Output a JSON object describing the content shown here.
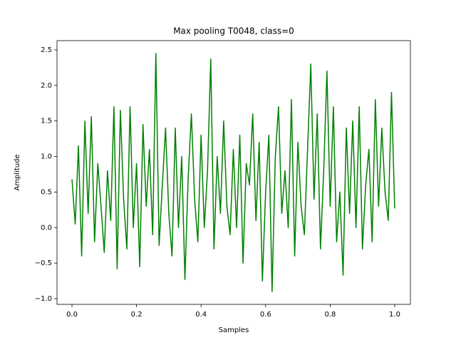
{
  "chart_data": {
    "type": "line",
    "title": "Max pooling T0048, class=0",
    "xlabel": "Samples",
    "ylabel": "Amplitude",
    "color": "#008000",
    "x": [
      0,
      0.01,
      0.02,
      0.03,
      0.04,
      0.05,
      0.06,
      0.07,
      0.08,
      0.09,
      0.1,
      0.11,
      0.12,
      0.13,
      0.14,
      0.15,
      0.16,
      0.17,
      0.18,
      0.19,
      0.2,
      0.21,
      0.22,
      0.23,
      0.24,
      0.25,
      0.26,
      0.27,
      0.28,
      0.29,
      0.3,
      0.31,
      0.32,
      0.33,
      0.34,
      0.35,
      0.36,
      0.37,
      0.38,
      0.39,
      0.4,
      0.41,
      0.42,
      0.43,
      0.44,
      0.45,
      0.46,
      0.47,
      0.48,
      0.49,
      0.5,
      0.51,
      0.52,
      0.53,
      0.54,
      0.55,
      0.56,
      0.57,
      0.58,
      0.59,
      0.6,
      0.61,
      0.62,
      0.63,
      0.64,
      0.65,
      0.66,
      0.67,
      0.68,
      0.69,
      0.7,
      0.71,
      0.72,
      0.73,
      0.74,
      0.75,
      0.76,
      0.77,
      0.78,
      0.79,
      0.8,
      0.81,
      0.82,
      0.83,
      0.84,
      0.85,
      0.86,
      0.87,
      0.88,
      0.89,
      0.9,
      0.91,
      0.92,
      0.93,
      0.94,
      0.95,
      0.96,
      0.97,
      0.98,
      0.99,
      1
    ],
    "values": [
      0.68,
      0.05,
      1.15,
      -0.4,
      1.5,
      0.2,
      1.56,
      -0.2,
      0.9,
      0.3,
      -0.35,
      0.8,
      0.1,
      1.7,
      -0.58,
      1.65,
      0.4,
      -0.3,
      1.7,
      0.0,
      0.9,
      -0.55,
      1.45,
      0.3,
      1.1,
      -0.1,
      2.45,
      -0.25,
      0.6,
      1.4,
      0.2,
      -0.4,
      1.4,
      0.0,
      1.0,
      -0.73,
      0.7,
      1.6,
      0.4,
      -0.2,
      1.3,
      0.0,
      0.8,
      2.37,
      -0.3,
      1.0,
      0.2,
      1.5,
      0.3,
      -0.1,
      1.1,
      0.0,
      1.3,
      -0.5,
      0.9,
      0.6,
      1.6,
      0.1,
      1.2,
      -0.75,
      0.5,
      1.3,
      -0.9,
      1.0,
      1.7,
      0.2,
      0.8,
      0.0,
      1.8,
      -0.4,
      1.2,
      0.3,
      -0.1,
      1.1,
      2.3,
      0.4,
      1.6,
      -0.3,
      0.8,
      2.2,
      0.3,
      1.7,
      -0.2,
      0.5,
      -0.67,
      1.4,
      0.2,
      1.5,
      0.0,
      1.7,
      -0.3,
      0.6,
      1.1,
      -0.2,
      1.8,
      0.3,
      1.4,
      0.5,
      0.1,
      1.9,
      0.27
    ],
    "xlim": [
      -0.0464,
      1.0486
    ],
    "ylim": [
      -1.08,
      2.63
    ],
    "xticks": [
      {
        "value": 0,
        "label": "0.0"
      },
      {
        "value": 0.2,
        "label": "0.2"
      },
      {
        "value": 0.4,
        "label": "0.4"
      },
      {
        "value": 0.6,
        "label": "0.6"
      },
      {
        "value": 0.8,
        "label": "0.8"
      },
      {
        "value": 1,
        "label": "1.0"
      }
    ],
    "yticks": [
      {
        "value": -1,
        "label": "−1.0"
      },
      {
        "value": -0.5,
        "label": "−0.5"
      },
      {
        "value": 0,
        "label": "0.0"
      },
      {
        "value": 0.5,
        "label": "0.5"
      },
      {
        "value": 1,
        "label": "1.0"
      },
      {
        "value": 1.5,
        "label": "1.5"
      },
      {
        "value": 2,
        "label": "2.0"
      },
      {
        "value": 2.5,
        "label": "2.5"
      }
    ]
  }
}
